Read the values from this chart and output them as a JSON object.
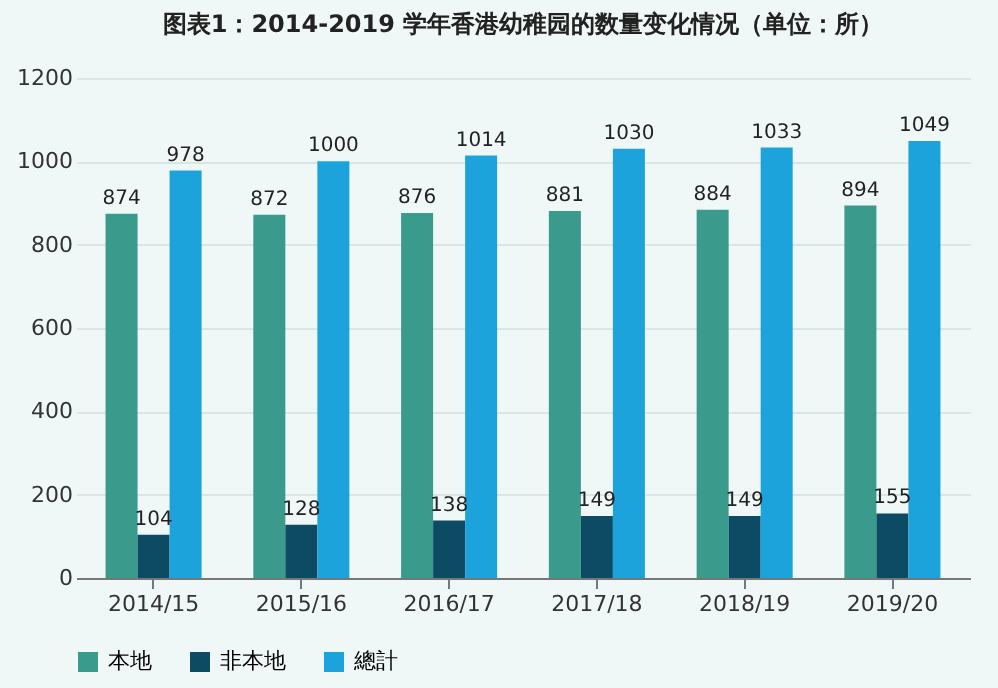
{
  "chart_data": {
    "type": "bar",
    "title": "图表1：2014-2019 学年香港幼稚园的数量变化情况（单位：所）",
    "categories": [
      "2014/15",
      "2015/16",
      "2016/17",
      "2017/18",
      "2018/19",
      "2019/20"
    ],
    "series": [
      {
        "name": "本地",
        "color": "#3a9a8c",
        "values": [
          874,
          872,
          876,
          881,
          884,
          894
        ]
      },
      {
        "name": "非本地",
        "color": "#0d4a63",
        "values": [
          104,
          128,
          138,
          149,
          149,
          155
        ]
      },
      {
        "name": "總計",
        "color": "#1ca3dc",
        "values": [
          978,
          1000,
          1014,
          1030,
          1033,
          1049
        ]
      }
    ],
    "ylim": [
      0,
      1200
    ],
    "yticks": [
      0,
      200,
      400,
      600,
      800,
      1000,
      1200
    ],
    "grid": "y",
    "legend": "bottom",
    "data_labels": true
  }
}
